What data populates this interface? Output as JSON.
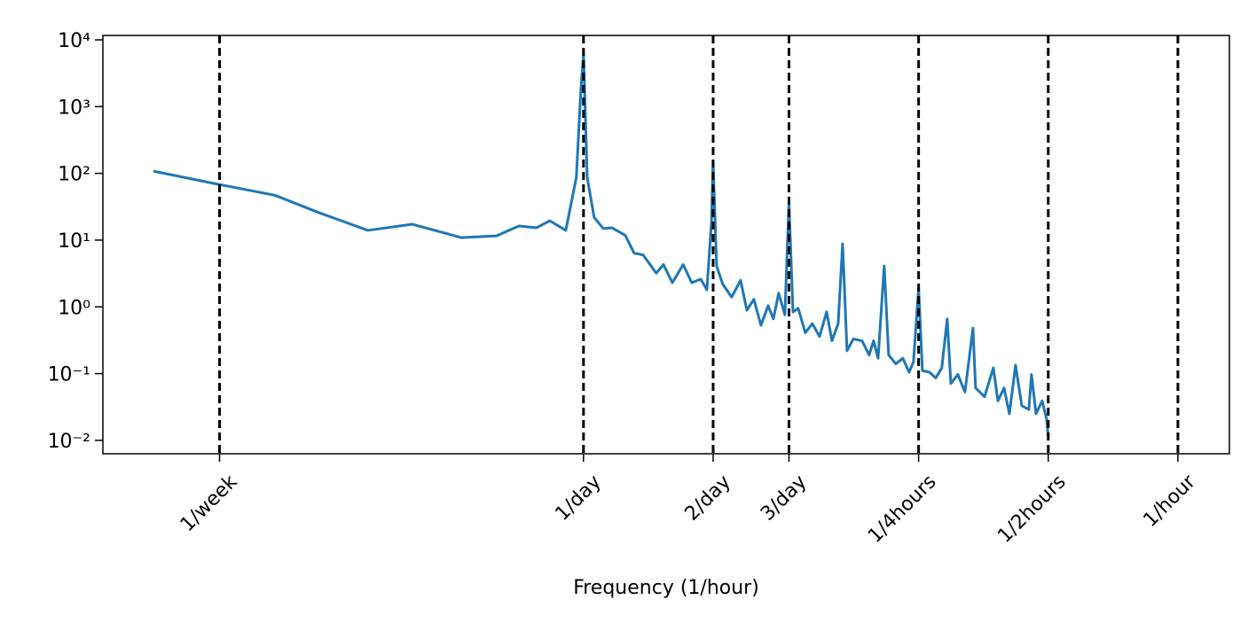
{
  "chart_data": {
    "type": "line",
    "xlabel": "Frequency (1/hour)",
    "xscale": "log",
    "yscale": "log",
    "xlim": [
      0.00319,
      1.317
    ],
    "ylim": [
      0.0063,
      11650
    ],
    "xticks": [
      {
        "value": 0.005952,
        "label": "1/week"
      },
      {
        "value": 0.041667,
        "label": "1/day"
      },
      {
        "value": 0.083333,
        "label": "2/day"
      },
      {
        "value": 0.125,
        "label": "3/day"
      },
      {
        "value": 0.25,
        "label": "1/4hours"
      },
      {
        "value": 0.5,
        "label": "1/2hours"
      },
      {
        "value": 1,
        "label": "1/hour"
      }
    ],
    "xtick_lines": "dashed",
    "yticks": [
      {
        "value": 0.01,
        "label": "10⁻²"
      },
      {
        "value": 0.1,
        "label": "10⁻¹"
      },
      {
        "value": 1,
        "label": "10⁰"
      },
      {
        "value": 10,
        "label": "10¹"
      },
      {
        "value": 100,
        "label": "10²"
      },
      {
        "value": 1000,
        "label": "10³"
      },
      {
        "value": 10000,
        "label": "10⁴"
      }
    ],
    "series": [
      {
        "color": "#1f77b4",
        "x": [
          0.00418,
          0.00595,
          0.008,
          0.01014,
          0.01316,
          0.01668,
          0.02167,
          0.02618,
          0.0295,
          0.0324,
          0.0348,
          0.0379,
          0.0401,
          0.0411,
          0.04167,
          0.0425,
          0.0441,
          0.0463,
          0.0485,
          0.0521,
          0.0546,
          0.0573,
          0.0615,
          0.0639,
          0.067,
          0.071,
          0.0743,
          0.078,
          0.0806,
          0.0826,
          0.0833,
          0.0849,
          0.0877,
          0.092,
          0.0965,
          0.0998,
          0.1036,
          0.1076,
          0.1118,
          0.115,
          0.1183,
          0.1223,
          0.125,
          0.1277,
          0.1313,
          0.1364,
          0.1417,
          0.1472,
          0.1529,
          0.1573,
          0.1626,
          0.1665,
          0.1705,
          0.1763,
          0.1848,
          0.1919,
          0.1965,
          0.2013,
          0.208,
          0.213,
          0.2213,
          0.2298,
          0.2376,
          0.2432,
          0.25,
          0.2551,
          0.265,
          0.274,
          0.283,
          0.2913,
          0.297,
          0.3084,
          0.3203,
          0.3343,
          0.339,
          0.3556,
          0.3728,
          0.382,
          0.3947,
          0.4062,
          0.4198,
          0.434,
          0.4508,
          0.4571,
          0.4683,
          0.484,
          0.4955,
          0.5
        ],
        "values": [
          108,
          68,
          47,
          25.7,
          14.0,
          17.3,
          10.9,
          11.6,
          16.3,
          15.3,
          19.5,
          14.0,
          87,
          1860,
          6300,
          87,
          22,
          14.9,
          15.3,
          11.8,
          6.4,
          6.0,
          3.2,
          4.3,
          2.3,
          4.3,
          2.3,
          2.6,
          1.8,
          19,
          152,
          4.1,
          2.2,
          1.4,
          2.5,
          0.89,
          1.3,
          0.53,
          1.04,
          0.66,
          1.6,
          0.76,
          37,
          0.84,
          0.95,
          0.41,
          0.56,
          0.36,
          0.84,
          0.31,
          0.56,
          8.8,
          0.22,
          0.33,
          0.31,
          0.19,
          0.31,
          0.17,
          4.1,
          0.19,
          0.14,
          0.17,
          0.105,
          0.15,
          1.9,
          0.111,
          0.105,
          0.086,
          0.122,
          0.66,
          0.071,
          0.097,
          0.053,
          0.48,
          0.061,
          0.045,
          0.122,
          0.039,
          0.061,
          0.025,
          0.134,
          0.033,
          0.029,
          0.097,
          0.025,
          0.039,
          0.021,
          0.0114
        ]
      }
    ]
  }
}
